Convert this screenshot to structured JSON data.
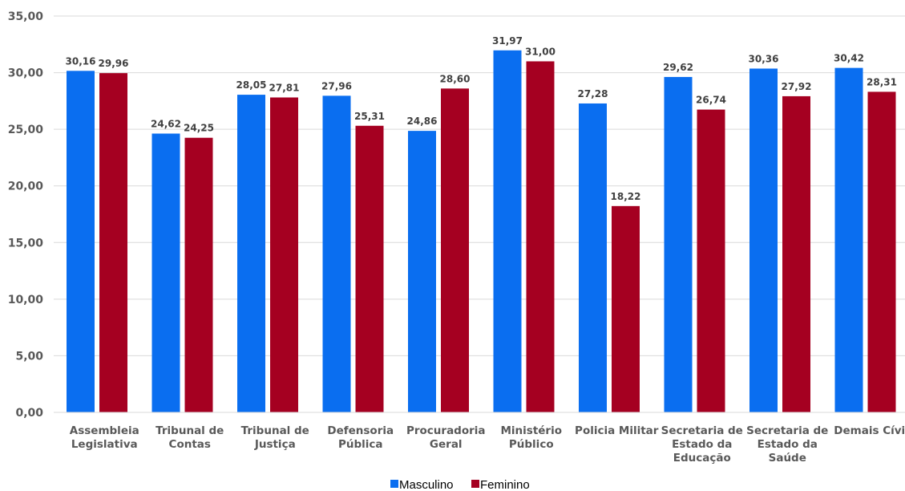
{
  "chart_data": {
    "type": "bar",
    "categories": [
      [
        "Assembleia",
        "Legislativa"
      ],
      [
        "Tribunal de",
        "Contas"
      ],
      [
        "Tribunal de",
        "Justiça"
      ],
      [
        "Defensoria",
        "Pública"
      ],
      [
        "Procuradoria",
        "Geral"
      ],
      [
        "Ministério",
        "Público"
      ],
      [
        "Policia Militar"
      ],
      [
        "Secretaria de",
        "Estado da",
        "Educação"
      ],
      [
        "Secretaria de",
        "Estado da",
        "Saúde"
      ],
      [
        "Demais Cívis"
      ]
    ],
    "series": [
      {
        "name": "Masculino",
        "color": "#0A6EF0",
        "values": [
          30.16,
          24.62,
          28.05,
          27.96,
          24.86,
          31.97,
          27.28,
          29.62,
          30.36,
          30.42
        ],
        "labels": [
          "30,16",
          "24,62",
          "28,05",
          "27,96",
          "24,86",
          "31,97",
          "27,28",
          "29,62",
          "30,36",
          "30,42"
        ]
      },
      {
        "name": "Feminino",
        "color": "#A50021",
        "values": [
          29.96,
          24.25,
          27.81,
          25.31,
          28.6,
          31.0,
          18.22,
          26.74,
          27.92,
          28.31
        ],
        "labels": [
          "29,96",
          "24,25",
          "27,81",
          "25,31",
          "28,60",
          "31,00",
          "18,22",
          "26,74",
          "27,92",
          "28,31"
        ]
      }
    ],
    "ylim": [
      0,
      35
    ],
    "yticks": [
      0,
      5,
      10,
      15,
      20,
      25,
      30,
      35
    ],
    "ytick_labels": [
      "0,00",
      "5,00",
      "10,00",
      "15,00",
      "20,00",
      "25,00",
      "30,00",
      "35,00"
    ],
    "grid": true,
    "legend": "bottom-center",
    "title": "",
    "xlabel": "",
    "ylabel": ""
  }
}
